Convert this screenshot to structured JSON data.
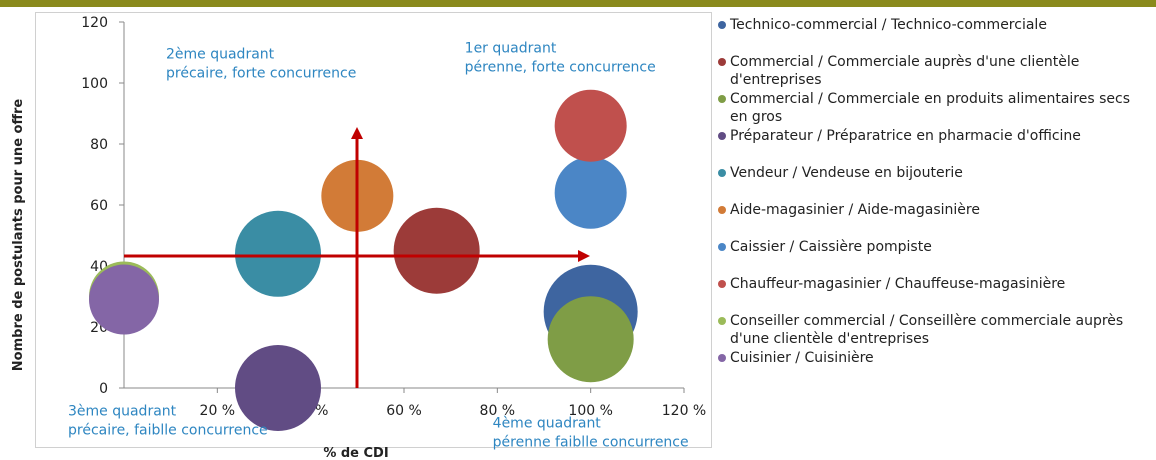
{
  "chart_data": {
    "type": "bubble",
    "xlabel": "% de CDI",
    "ylabel": "Nombre de postulants pour une offre",
    "xlim": [
      0,
      120
    ],
    "ylim": [
      0,
      120
    ],
    "xticks": [
      {
        "value": 20,
        "label": "20 %"
      },
      {
        "value": 40,
        "label": "40 %"
      },
      {
        "value": 60,
        "label": "60 %"
      },
      {
        "value": 80,
        "label": "80 %"
      },
      {
        "value": 100,
        "label": "100 %"
      },
      {
        "value": 120,
        "label": "120 %"
      }
    ],
    "yticks": [
      0,
      20,
      40,
      60,
      80,
      100,
      120
    ],
    "grid": false,
    "legend": "right",
    "annotations": [
      {
        "text": "2ème quadrant\nprécaire, forte concurrence",
        "x": 9,
        "y": 108
      },
      {
        "text": "1er quadrant\npérenne, forte concurrence",
        "x": 73,
        "y": 110
      },
      {
        "text": "3ème quadrant\nprécaire, faiblle concurrence",
        "x": -12,
        "y": -9
      },
      {
        "text": "4ème quadrant\npérenne faiblle concurrence",
        "x": 79,
        "y": -13
      }
    ],
    "series": [
      {
        "name": "Technico-commercial / Technico-commerciale",
        "color": "#3e65a0",
        "x": [
          100
        ],
        "values": [
          25
        ],
        "sizes": [
          47
        ]
      },
      {
        "name": "Commercial / Commerciale auprès d'une clientèle d'entreprises",
        "color": "#9c3b39",
        "x": [
          67
        ],
        "values": [
          45
        ],
        "sizes": [
          43
        ]
      },
      {
        "name": "Commercial / Commerciale en produits alimentaires secs en gros",
        "color": "#7f9d46",
        "x": [
          100
        ],
        "values": [
          16
        ],
        "sizes": [
          43
        ]
      },
      {
        "name": "Préparateur / Préparatrice en pharmacie d'officine",
        "color": "#614c84",
        "x": [
          33
        ],
        "values": [
          0
        ],
        "sizes": [
          43
        ]
      },
      {
        "name": "Vendeur / Vendeuse en bijouterie",
        "color": "#3a8da4",
        "x": [
          33
        ],
        "values": [
          44
        ],
        "sizes": [
          43
        ]
      },
      {
        "name": "Aide-magasinier / Aide-magasinière",
        "color": "#d27b37",
        "x": [
          50
        ],
        "values": [
          63
        ],
        "sizes": [
          36
        ]
      },
      {
        "name": "Caissier / Caissière pompiste",
        "color": "#4b86c6",
        "x": [
          100
        ],
        "values": [
          64
        ],
        "sizes": [
          36
        ]
      },
      {
        "name": "Chauffeur-magasinier / Chauffeuse-magasinière",
        "color": "#c0504d",
        "x": [
          100
        ],
        "values": [
          86
        ],
        "sizes": [
          36
        ]
      },
      {
        "name": "Conseiller commercial / Conseillère commerciale auprès d'une clientèle d'entreprises",
        "color": "#9bbb59",
        "x": [
          0
        ],
        "values": [
          30
        ],
        "sizes": [
          35
        ]
      },
      {
        "name": "Cuisinier / Cuisinière",
        "color": "#8466a6",
        "x": [
          0
        ],
        "values": [
          29
        ],
        "sizes": [
          35
        ]
      }
    ]
  }
}
